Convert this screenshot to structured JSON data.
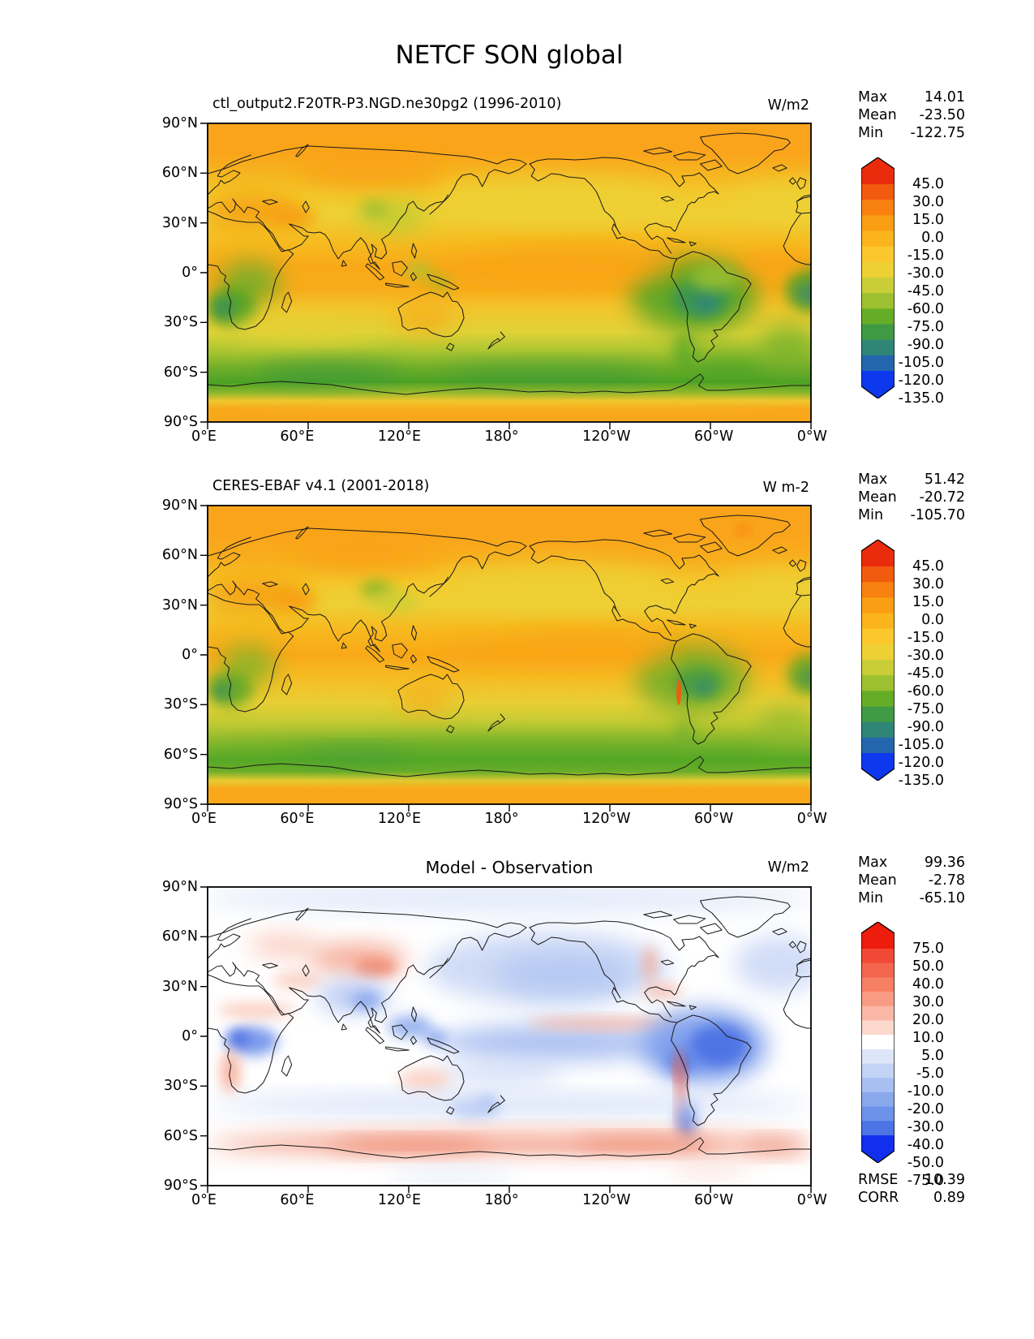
{
  "main_title": "NETCF SON global",
  "axis": {
    "yticks": [
      "90°N",
      "60°N",
      "30°N",
      "0°",
      "30°S",
      "60°S",
      "90°S"
    ],
    "xticks": [
      "0°E",
      "60°E",
      "120°E",
      "180°",
      "120°W",
      "60°W",
      "0°W"
    ]
  },
  "stat_labels": {
    "max": "Max",
    "mean": "Mean",
    "min": "Min"
  },
  "panels": [
    {
      "title": "ctl_output2.F20TR-P3.NGD.ne30pg2 (1996-2010)",
      "units": "W/m2",
      "stats": {
        "max": "14.01",
        "mean": "-23.50",
        "min": "-122.75"
      },
      "colorbar_ticks": [
        "45.0",
        "30.0",
        "15.0",
        "0.0",
        "-15.0",
        "-30.0",
        "-45.0",
        "-60.0",
        "-75.0",
        "-90.0",
        "-105.0",
        "-120.0",
        "-135.0"
      ]
    },
    {
      "title": "CERES-EBAF v4.1 (2001-2018)",
      "units": "W m-2",
      "stats": {
        "max": "51.42",
        "mean": "-20.72",
        "min": "-105.70"
      },
      "colorbar_ticks": [
        "45.0",
        "30.0",
        "15.0",
        "0.0",
        "-15.0",
        "-30.0",
        "-45.0",
        "-60.0",
        "-75.0",
        "-90.0",
        "-105.0",
        "-120.0",
        "-135.0"
      ]
    },
    {
      "title": "Model - Observation",
      "units": "W/m2",
      "stats": {
        "max": "99.36",
        "mean": "-2.78",
        "min": "-65.10"
      },
      "colorbar_ticks": [
        "75.0",
        "50.0",
        "40.0",
        "30.0",
        "20.0",
        "10.0",
        "5.0",
        "-5.0",
        "-10.0",
        "-20.0",
        "-30.0",
        "-40.0",
        "-50.0",
        "-75.0"
      ],
      "metrics": {
        "rmse_label": "RMSE",
        "rmse": "10.39",
        "corr_label": "CORR",
        "corr": "0.89"
      }
    }
  ],
  "colormaps": {
    "absolute": [
      "#ea2b0c",
      "#f25a10",
      "#f8810f",
      "#fa9e13",
      "#fbb41b",
      "#fcc72d",
      "#edd034",
      "#c9cd37",
      "#9cc02f",
      "#66ad27",
      "#3f9a44",
      "#2f8677",
      "#2366ae",
      "#0d38ee"
    ],
    "difference": [
      "#ed1c0c",
      "#f24936",
      "#f4654d",
      "#f67f64",
      "#f99b83",
      "#fbb7a5",
      "#fdd8cc",
      "#ffffff",
      "#dde6f9",
      "#c3d3f5",
      "#a7bff1",
      "#8aa9ed",
      "#6c92e9",
      "#4c74e4",
      "#122fee"
    ]
  },
  "chart_data": [
    {
      "type": "heatmap",
      "subtype": "global-filled-contour-map",
      "title": "ctl_output2.F20TR-P3.NGD.ne30pg2 (1996-2010)",
      "figure_title": "NETCF SON global",
      "variable": "NETCF",
      "season": "SON",
      "region": "global",
      "units": "W/m2",
      "stats": {
        "max": 14.01,
        "mean": -23.5,
        "min": -122.75
      },
      "contour_levels": [
        -135,
        -120,
        -105,
        -90,
        -75,
        -60,
        -45,
        -30,
        -15,
        0,
        15,
        30,
        45
      ],
      "colorbar_extend": "both",
      "lon_range_deg_east": [
        0,
        360
      ],
      "lat_range": [
        -90,
        90
      ],
      "xticks": [
        "0°E",
        "60°E",
        "120°E",
        "180°",
        "120°W",
        "60°W",
        "0°W"
      ],
      "yticks": [
        "90°N",
        "60°N",
        "30°N",
        "0°",
        "30°S",
        "60°S",
        "90°S"
      ],
      "colormap": "orange-yellow-green-blue (AMWG-style)",
      "grid": false,
      "legend_position": "right-colorbar"
    },
    {
      "type": "heatmap",
      "subtype": "global-filled-contour-map",
      "title": "CERES-EBAF v4.1 (2001-2018)",
      "variable": "NETCF",
      "season": "SON",
      "region": "global",
      "units": "W m-2",
      "stats": {
        "max": 51.42,
        "mean": -20.72,
        "min": -105.7
      },
      "contour_levels": [
        -135,
        -120,
        -105,
        -90,
        -75,
        -60,
        -45,
        -30,
        -15,
        0,
        15,
        30,
        45
      ],
      "colorbar_extend": "both",
      "lon_range_deg_east": [
        0,
        360
      ],
      "lat_range": [
        -90,
        90
      ],
      "xticks": [
        "0°E",
        "60°E",
        "120°E",
        "180°",
        "120°W",
        "60°W",
        "0°W"
      ],
      "yticks": [
        "90°N",
        "60°N",
        "30°N",
        "0°",
        "30°S",
        "60°S",
        "90°S"
      ],
      "colormap": "orange-yellow-green-blue (AMWG-style)",
      "grid": false,
      "legend_position": "right-colorbar"
    },
    {
      "type": "heatmap",
      "subtype": "global-filled-contour-difference-map",
      "title": "Model - Observation",
      "variable": "NETCF difference",
      "season": "SON",
      "region": "global",
      "units": "W/m2",
      "stats": {
        "max": 99.36,
        "mean": -2.78,
        "min": -65.1
      },
      "rmse": 10.39,
      "corr": 0.89,
      "contour_levels": [
        -75,
        -50,
        -40,
        -30,
        -20,
        -10,
        -5,
        5,
        10,
        20,
        30,
        40,
        50,
        75
      ],
      "colorbar_extend": "both",
      "lon_range_deg_east": [
        0,
        360
      ],
      "lat_range": [
        -90,
        90
      ],
      "xticks": [
        "0°E",
        "60°E",
        "120°E",
        "180°",
        "120°W",
        "60°W",
        "0°W"
      ],
      "yticks": [
        "90°N",
        "60°N",
        "30°N",
        "0°",
        "30°S",
        "60°S",
        "90°S"
      ],
      "colormap": "blue-white-red diverging",
      "grid": false,
      "legend_position": "right-colorbar"
    }
  ]
}
